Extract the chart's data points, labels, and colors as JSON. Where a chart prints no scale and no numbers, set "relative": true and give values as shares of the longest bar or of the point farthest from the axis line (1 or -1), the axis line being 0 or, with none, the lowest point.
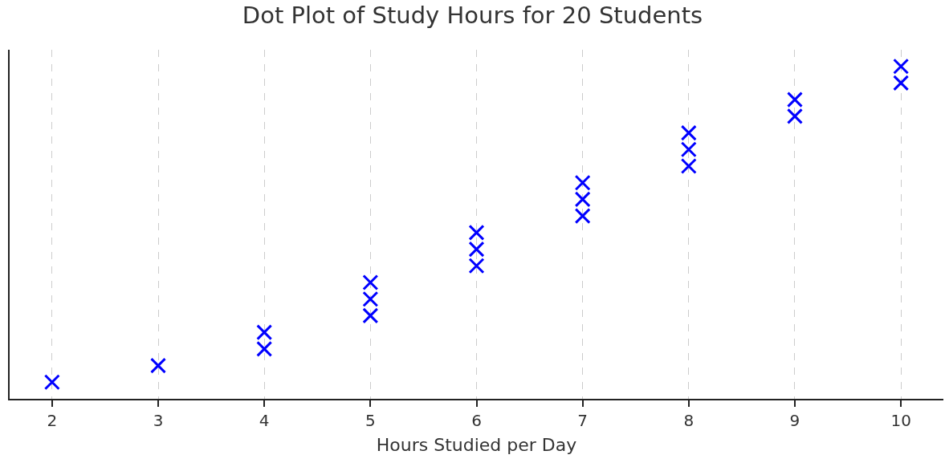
{
  "chart_data": {
    "type": "scatter",
    "title": "Dot Plot of Study Hours for 20 Students",
    "xlabel": "Hours Studied per Day",
    "relative": true,
    "x": [
      2,
      3,
      4,
      4,
      5,
      5,
      5,
      6,
      6,
      6,
      7,
      7,
      7,
      8,
      8,
      8,
      9,
      9,
      10,
      10
    ],
    "series": [
      {
        "color": "#0000ff",
        "values": [
          0.05,
          0.1,
          0.15,
          0.2,
          0.25,
          0.3,
          0.35,
          0.4,
          0.45,
          0.5,
          0.55,
          0.6,
          0.65,
          0.7,
          0.75,
          0.8,
          0.85,
          0.9,
          0.95,
          1
        ]
      }
    ],
    "xlim": [
      1.6,
      10.4
    ],
    "xticks": [
      2,
      3,
      4,
      5,
      6,
      7,
      8,
      9,
      10
    ],
    "grid": "x",
    "marker": "cross",
    "legend": false
  }
}
